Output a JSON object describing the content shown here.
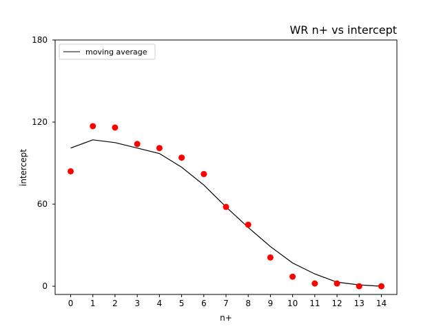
{
  "chart_data": {
    "type": "scatter",
    "title": "WR n+ vs intercept",
    "xlabel": "n+",
    "ylabel": "intercept",
    "xlim": [
      -0.7,
      14.7
    ],
    "ylim": [
      -6,
      180
    ],
    "xticks": [
      0,
      1,
      2,
      3,
      4,
      5,
      6,
      7,
      8,
      9,
      10,
      11,
      12,
      13,
      14
    ],
    "yticks": [
      0,
      60,
      120,
      180
    ],
    "grid": false,
    "legend_position": "top-left",
    "series": [
      {
        "kind": "scatter",
        "color": "#ff0000",
        "x": [
          0,
          1,
          2,
          3,
          4,
          5,
          6,
          7,
          8,
          9,
          10,
          11,
          12,
          13,
          14
        ],
        "y": [
          84,
          117,
          116,
          104,
          101,
          94,
          82,
          58,
          45,
          21,
          7,
          2,
          2,
          0,
          0
        ]
      },
      {
        "kind": "line",
        "name": "moving average",
        "color": "#000000",
        "x": [
          0,
          1,
          2,
          3,
          4,
          5,
          6,
          7,
          8,
          9,
          10,
          11,
          12,
          13,
          14
        ],
        "y": [
          101,
          107,
          105,
          101,
          97,
          87,
          74,
          58,
          43,
          29,
          17,
          9,
          3,
          1,
          0
        ]
      }
    ]
  }
}
